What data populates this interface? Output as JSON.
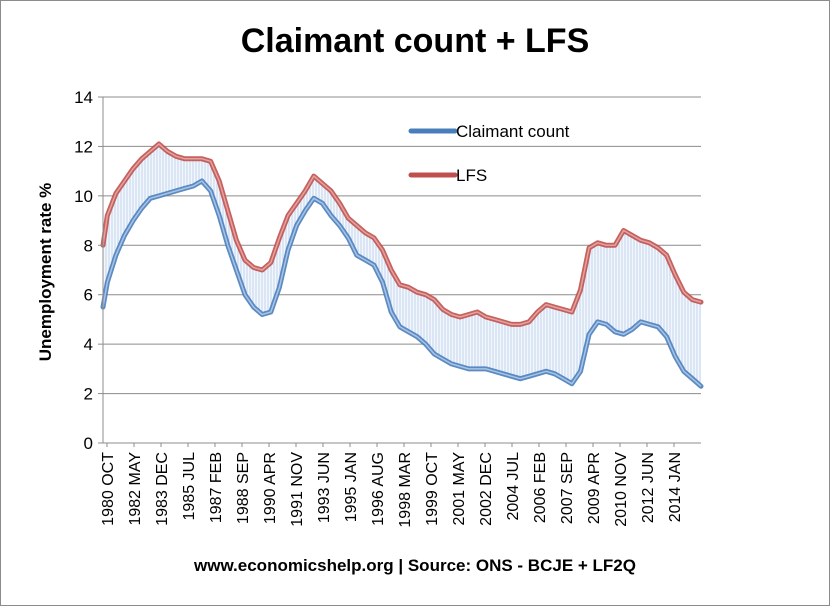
{
  "chart_data": {
    "type": "line",
    "title": "Claimant count + LFS",
    "ylabel": "Unemployment rate %",
    "xlabel": "",
    "source": "www.economicshelp.org | Source: ONS - BCJE + LF2Q",
    "ylim": [
      0,
      14
    ],
    "yticks": [
      0,
      2,
      4,
      6,
      8,
      10,
      12,
      14
    ],
    "grid": true,
    "legend_position": "top-right (inside plot)",
    "x_tick_labels": [
      "1980 OCT",
      "1982 MAY",
      "1983 DEC",
      "1985 JUL",
      "1987 FEB",
      "1988 SEP",
      "1990 APR",
      "1991 NOV",
      "1993 JUN",
      "1995 JAN",
      "1996 AUG",
      "1998 MAR",
      "1999 OCT",
      "2001 MAY",
      "2002 DEC",
      "2004 JUL",
      "2006 FEB",
      "2007 SEP",
      "2009 APR",
      "2010 NOV",
      "2012 JUN",
      "2014 JAN"
    ],
    "x": [
      1980.75,
      1981.0,
      1981.5,
      1982.0,
      1982.5,
      1983.0,
      1983.5,
      1984.0,
      1984.5,
      1985.0,
      1985.5,
      1986.0,
      1986.5,
      1987.0,
      1987.5,
      1988.0,
      1988.5,
      1989.0,
      1989.5,
      1990.0,
      1990.5,
      1991.0,
      1991.5,
      1992.0,
      1992.5,
      1993.0,
      1993.5,
      1994.0,
      1994.5,
      1995.0,
      1995.5,
      1996.0,
      1996.5,
      1997.0,
      1997.5,
      1998.0,
      1998.5,
      1999.0,
      1999.5,
      2000.0,
      2000.5,
      2001.0,
      2001.5,
      2002.0,
      2002.5,
      2003.0,
      2003.5,
      2004.0,
      2004.5,
      2005.0,
      2005.5,
      2006.0,
      2006.5,
      2007.0,
      2007.5,
      2008.0,
      2008.5,
      2009.0,
      2009.5,
      2010.0,
      2010.5,
      2011.0,
      2011.5,
      2012.0,
      2012.5,
      2013.0,
      2013.5,
      2014.0,
      2014.5,
      2015.0,
      2015.5
    ],
    "series": [
      {
        "name": "Claimant count",
        "color": "#4a7ebb",
        "values": [
          5.5,
          6.5,
          7.6,
          8.4,
          9.0,
          9.5,
          9.9,
          10.0,
          10.1,
          10.2,
          10.3,
          10.4,
          10.6,
          10.2,
          9.2,
          8.0,
          7.0,
          6.0,
          5.5,
          5.2,
          5.3,
          6.3,
          7.8,
          8.8,
          9.4,
          9.9,
          9.7,
          9.2,
          8.8,
          8.3,
          7.6,
          7.4,
          7.2,
          6.5,
          5.3,
          4.7,
          4.5,
          4.3,
          4.0,
          3.6,
          3.4,
          3.2,
          3.1,
          3.0,
          3.0,
          3.0,
          2.9,
          2.8,
          2.7,
          2.6,
          2.7,
          2.8,
          2.9,
          2.8,
          2.6,
          2.4,
          2.9,
          4.4,
          4.9,
          4.8,
          4.5,
          4.4,
          4.6,
          4.9,
          4.8,
          4.7,
          4.3,
          3.5,
          2.9,
          2.6,
          2.3
        ]
      },
      {
        "name": "LFS",
        "color": "#c0504d",
        "values": [
          8.0,
          9.2,
          10.1,
          10.6,
          11.1,
          11.5,
          11.8,
          12.1,
          11.8,
          11.6,
          11.5,
          11.5,
          11.5,
          11.4,
          10.6,
          9.4,
          8.2,
          7.4,
          7.1,
          7.0,
          7.3,
          8.3,
          9.2,
          9.7,
          10.2,
          10.8,
          10.5,
          10.2,
          9.7,
          9.1,
          8.8,
          8.5,
          8.3,
          7.8,
          7.0,
          6.4,
          6.3,
          6.1,
          6.0,
          5.8,
          5.4,
          5.2,
          5.1,
          5.2,
          5.3,
          5.1,
          5.0,
          4.9,
          4.8,
          4.8,
          4.9,
          5.3,
          5.6,
          5.5,
          5.4,
          5.3,
          6.2,
          7.9,
          8.1,
          8.0,
          8.0,
          8.6,
          8.4,
          8.2,
          8.1,
          7.9,
          7.6,
          6.8,
          6.1,
          5.8,
          5.7
        ]
      }
    ]
  }
}
